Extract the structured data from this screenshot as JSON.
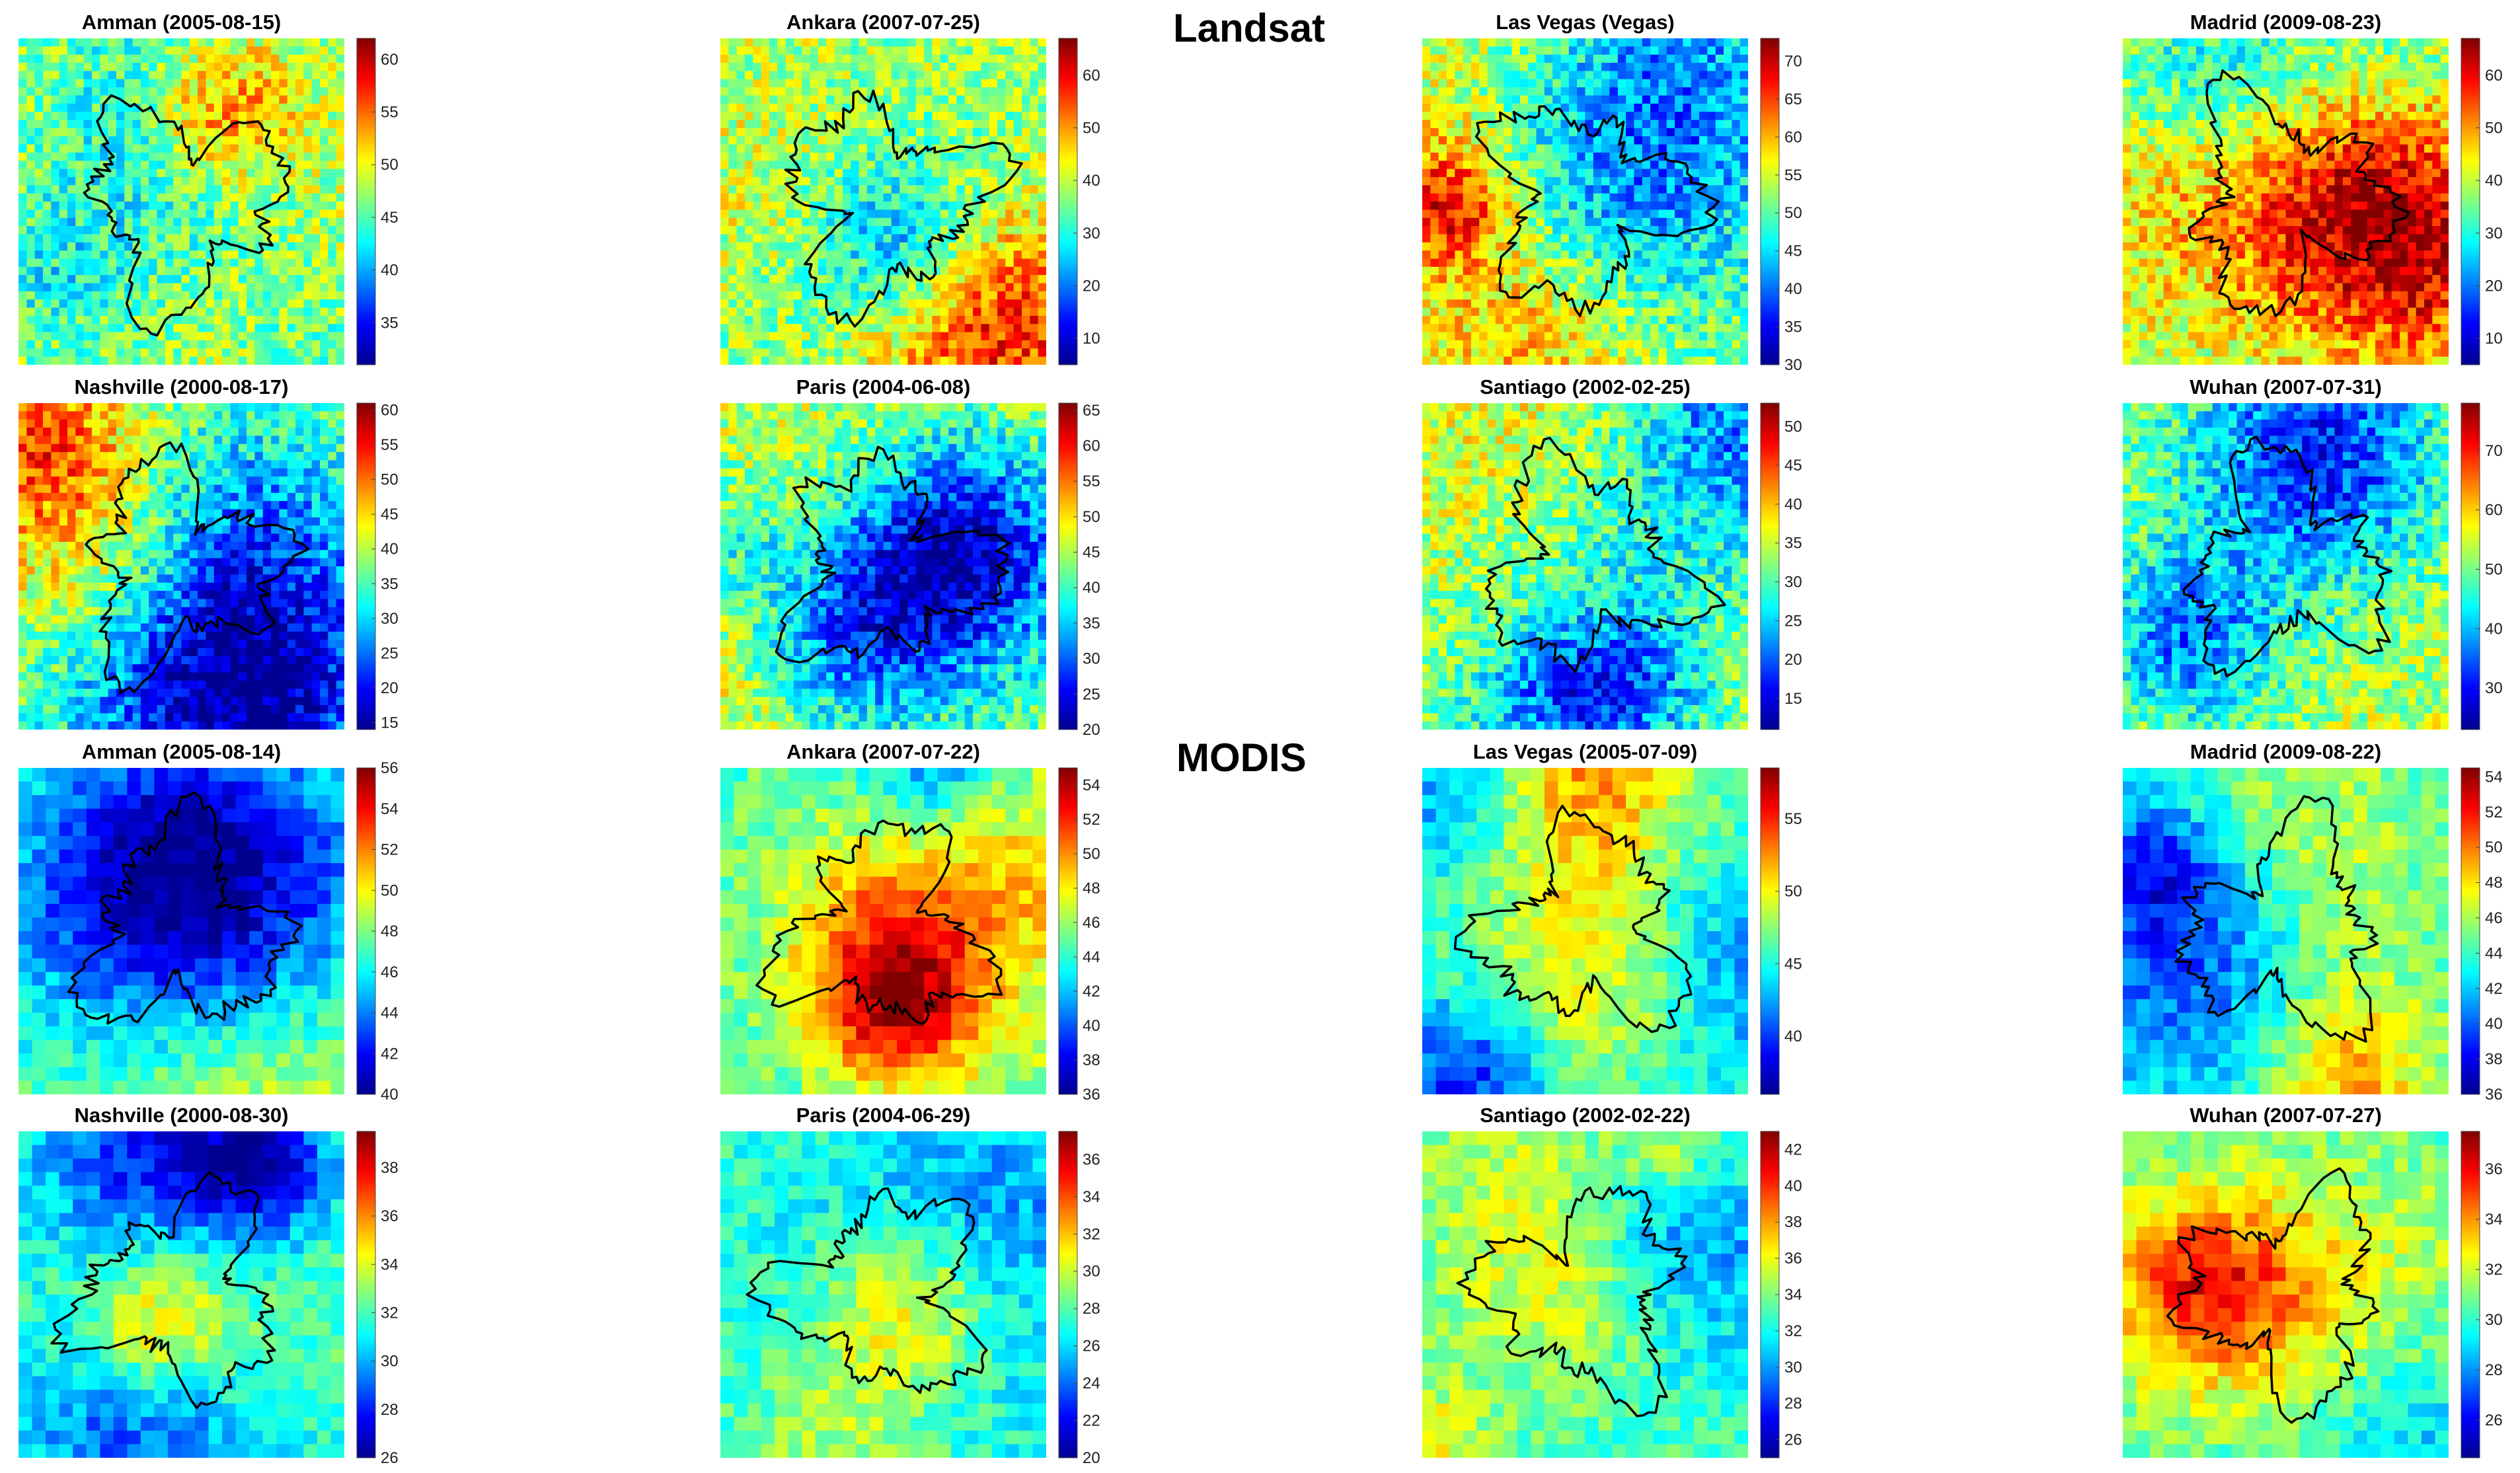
{
  "sections": {
    "landsat": "Landsat",
    "modis": "MODIS"
  },
  "colorscale": [
    "#00008f",
    "#0000ff",
    "#0080ff",
    "#00ffff",
    "#80ff80",
    "#ffff00",
    "#ff8000",
    "#ff0000",
    "#800000"
  ],
  "chart_data": [
    {
      "type": "heatmap",
      "sensor": "Landsat",
      "title": "Amman (2005-08-15)",
      "ticks": [
        35,
        40,
        45,
        50,
        55,
        60
      ],
      "range": [
        31,
        62
      ]
    },
    {
      "type": "heatmap",
      "sensor": "Landsat",
      "title": "Ankara (2007-07-25)",
      "ticks": [
        10,
        20,
        30,
        40,
        50,
        60
      ],
      "range": [
        5,
        67
      ]
    },
    {
      "type": "heatmap",
      "sensor": "Landsat",
      "title": "Las Vegas (Vegas)",
      "ticks": [
        30,
        35,
        40,
        45,
        50,
        55,
        60,
        65,
        70
      ],
      "range": [
        30,
        73
      ]
    },
    {
      "type": "heatmap",
      "sensor": "Landsat",
      "title": "Madrid (2009-08-23)",
      "ticks": [
        10,
        20,
        30,
        40,
        50,
        60
      ],
      "range": [
        5,
        67
      ]
    },
    {
      "type": "heatmap",
      "sensor": "Landsat",
      "title": "Nashville (2000-08-17)",
      "ticks": [
        15,
        20,
        25,
        30,
        35,
        40,
        45,
        50,
        55,
        60
      ],
      "range": [
        14,
        61
      ]
    },
    {
      "type": "heatmap",
      "sensor": "Landsat",
      "title": "Paris (2004-06-08)",
      "ticks": [
        20,
        25,
        30,
        35,
        40,
        45,
        50,
        55,
        60,
        65
      ],
      "range": [
        20,
        66
      ]
    },
    {
      "type": "heatmap",
      "sensor": "Landsat",
      "title": "Santiago (2002-02-25)",
      "ticks": [
        15,
        20,
        25,
        30,
        35,
        40,
        45,
        50
      ],
      "range": [
        11,
        53
      ]
    },
    {
      "type": "heatmap",
      "sensor": "Landsat",
      "title": "Wuhan (2007-07-31)",
      "ticks": [
        30,
        40,
        50,
        60,
        70
      ],
      "range": [
        23,
        78
      ]
    },
    {
      "type": "heatmap",
      "sensor": "MODIS",
      "title": "Amman (2005-08-14)",
      "ticks": [
        40,
        42,
        44,
        46,
        48,
        50,
        52,
        54,
        56
      ],
      "range": [
        40,
        56
      ]
    },
    {
      "type": "heatmap",
      "sensor": "MODIS",
      "title": "Ankara (2007-07-22)",
      "ticks": [
        36,
        38,
        40,
        42,
        44,
        46,
        48,
        50,
        52,
        54
      ],
      "range": [
        36,
        55
      ]
    },
    {
      "type": "heatmap",
      "sensor": "MODIS",
      "title": "Las Vegas (2005-07-09)",
      "ticks": [
        40,
        45,
        50,
        55
      ],
      "range": [
        36,
        58.5
      ]
    },
    {
      "type": "heatmap",
      "sensor": "MODIS",
      "title": "Madrid (2009-08-22)",
      "ticks": [
        36,
        38,
        40,
        42,
        44,
        46,
        48,
        50,
        52,
        54
      ],
      "range": [
        36,
        54.5
      ]
    },
    {
      "type": "heatmap",
      "sensor": "MODIS",
      "title": "Nashville (2000-08-30)",
      "ticks": [
        26,
        28,
        30,
        32,
        34,
        36,
        38
      ],
      "range": [
        26,
        39.5
      ]
    },
    {
      "type": "heatmap",
      "sensor": "MODIS",
      "title": "Paris (2004-06-29)",
      "ticks": [
        20,
        22,
        24,
        26,
        28,
        30,
        32,
        34,
        36
      ],
      "range": [
        20,
        37.5
      ]
    },
    {
      "type": "heatmap",
      "sensor": "MODIS",
      "title": "Santiago (2002-02-22)",
      "ticks": [
        26,
        28,
        30,
        32,
        34,
        36,
        38,
        40,
        42
      ],
      "range": [
        25,
        43
      ]
    },
    {
      "type": "heatmap",
      "sensor": "MODIS",
      "title": "Wuhan (2007-07-27)",
      "ticks": [
        26,
        28,
        30,
        32,
        34,
        36
      ],
      "range": [
        24.5,
        37.5
      ]
    }
  ]
}
